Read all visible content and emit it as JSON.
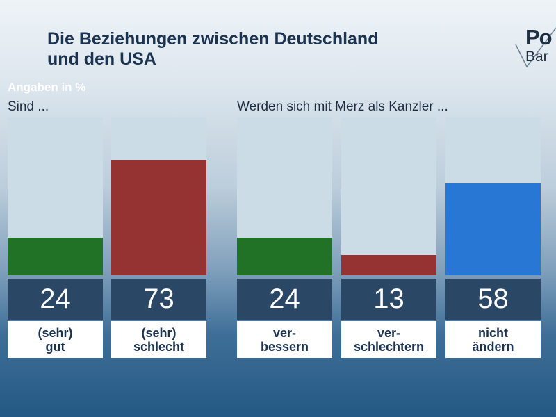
{
  "title": {
    "line1": "Die Beziehungen zwischen Deutschland",
    "line2": "und den USA"
  },
  "logo": {
    "line1": "Po",
    "line2": "Bar"
  },
  "unit_label": "Angaben in %",
  "chart_data": [
    {
      "type": "bar",
      "title": "Sind ...",
      "ylim": [
        0,
        100
      ],
      "categories": [
        "(sehr) gut",
        "(sehr) schlecht"
      ],
      "labels": [
        [
          "(sehr)",
          "gut"
        ],
        [
          "(sehr)",
          "schlecht"
        ]
      ],
      "values": [
        24,
        73
      ],
      "colors": [
        "#217226",
        "#943332"
      ]
    },
    {
      "type": "bar",
      "title": "Werden sich mit Merz als Kanzler ...",
      "ylim": [
        0,
        100
      ],
      "categories": [
        "ver-bessern",
        "ver-schlechtern",
        "nicht ändern"
      ],
      "labels": [
        [
          "ver-",
          "bessern"
        ],
        [
          "ver-",
          "schlechtern"
        ],
        [
          "nicht",
          "ändern"
        ]
      ],
      "values": [
        24,
        13,
        58
      ],
      "colors": [
        "#217226",
        "#943332",
        "#2877d4"
      ]
    }
  ]
}
